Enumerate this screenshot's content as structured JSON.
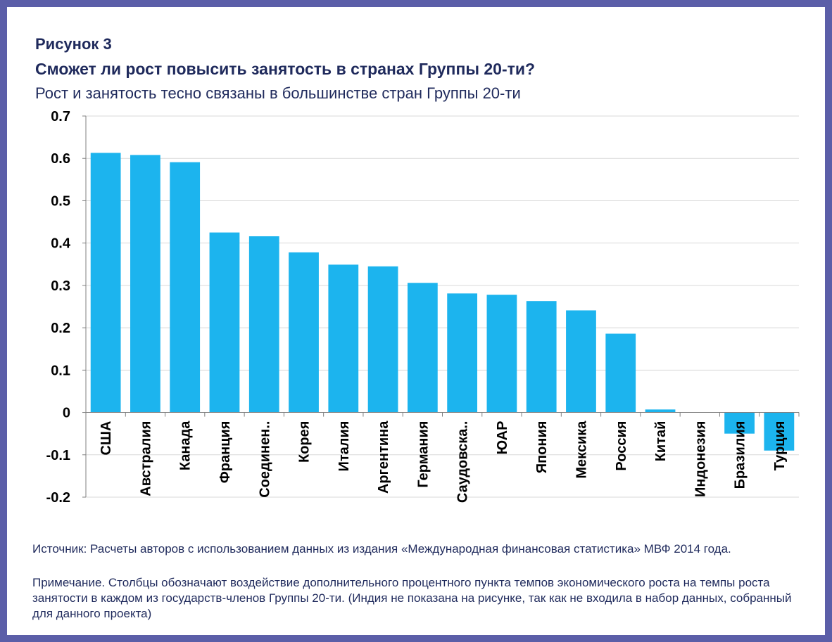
{
  "header": {
    "figure_number": "Рисунок 3",
    "title": "Сможет ли рост повысить занятость в странах Группы 20-ти?",
    "subtitle": "Рост и занятость тесно связаны в большинстве стран Группы 20-ти"
  },
  "chart_data": {
    "type": "bar",
    "categories": [
      "США",
      "Австралия",
      "Канада",
      "Франция",
      "Соединен..",
      "Корея",
      "Италия",
      "Аргентина",
      "Германия",
      "Саудовска..",
      "ЮАР",
      "Япония",
      "Мексика",
      "Россия",
      "Китай",
      "Индонезия",
      "Бразилия",
      "Турция"
    ],
    "values": [
      0.613,
      0.608,
      0.591,
      0.425,
      0.416,
      0.378,
      0.349,
      0.345,
      0.306,
      0.281,
      0.278,
      0.263,
      0.241,
      0.186,
      0.007,
      0.0,
      -0.05,
      -0.09
    ],
    "ylim": [
      -0.2,
      0.7
    ],
    "yticks": [
      "0.7",
      "0.6",
      "0.5",
      "0.4",
      "0.3",
      "0.2",
      "0.1",
      "0",
      "-0.1",
      "-0.2"
    ],
    "grid": true,
    "bar_color": "#1cb4ee"
  },
  "footer": {
    "source": "Источник: Расчеты авторов с использованием данных из издания «Международная финансовая статистика» МВФ 2014 года.",
    "note": "Примечание. Столбцы обозначают воздействие дополнительного процентного пункта темпов экономического роста на темпы роста занятости в каждом из государств-членов Группы 20-ти. (Индия не показана на рисунке, так как не входила в набор данных, собранный для данного проекта)"
  }
}
